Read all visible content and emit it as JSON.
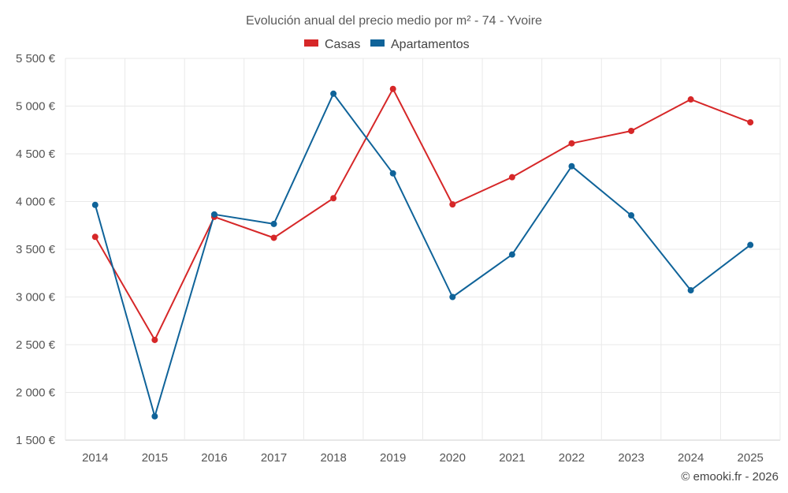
{
  "chart_data": {
    "type": "line",
    "title": "Evolución anual del precio medio por m² - 74 - Yvoire",
    "categories": [
      "2014",
      "2015",
      "2016",
      "2017",
      "2018",
      "2019",
      "2020",
      "2021",
      "2022",
      "2023",
      "2024",
      "2025"
    ],
    "series": [
      {
        "name": "Casas",
        "color": "#d62728",
        "values": [
          3630,
          2550,
          3840,
          3620,
          4035,
          5180,
          3970,
          4255,
          4610,
          4740,
          5070,
          4830
        ]
      },
      {
        "name": "Apartamentos",
        "color": "#0f6399",
        "values": [
          3965,
          1750,
          3865,
          3765,
          5130,
          4295,
          3000,
          3445,
          4370,
          3855,
          3070,
          3545
        ]
      }
    ],
    "ylim": [
      1500,
      5500
    ],
    "yticks": [
      1500,
      2000,
      2500,
      3000,
      3500,
      4000,
      4500,
      5000,
      5500
    ],
    "ytick_labels": [
      "1 500 €",
      "2 000 €",
      "2 500 €",
      "3 000 €",
      "3 500 €",
      "4 000 €",
      "4 500 €",
      "5 000 €",
      "5 500 €"
    ],
    "xlabel": "",
    "ylabel": "",
    "grid": true,
    "legend_position": "top-center"
  },
  "credit": "© emooki.fr - 2026"
}
